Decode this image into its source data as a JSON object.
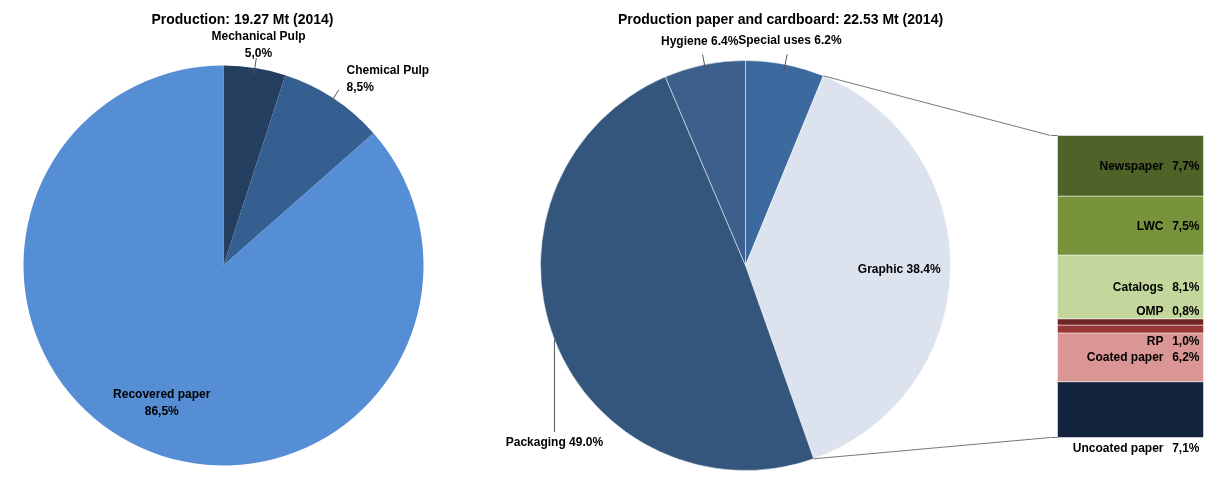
{
  "chart_data": [
    {
      "type": "pie",
      "title": "Production: 19.27 Mt (2014)",
      "categories": [
        "Mechanical Pulp",
        "Chemical Pulp",
        "Recovered paper"
      ],
      "values": [
        5.0,
        8.5,
        86.5
      ],
      "colors": [
        "#253f60",
        "#355f91",
        "#558ed5"
      ],
      "value_labels": [
        "5,0%",
        "8,5%",
        "86,5%"
      ]
    },
    {
      "type": "pie",
      "title": "Production paper and cardboard: 22.53 Mt (2014)",
      "categories": [
        "Special uses",
        "Graphic",
        "Packaging",
        "Hygiene"
      ],
      "values": [
        6.2,
        38.4,
        49.0,
        6.4
      ],
      "colors": [
        "#3d6a9e",
        "#dce3ef",
        "#34567d",
        "#3d5f8c"
      ],
      "value_labels": [
        "6.2%",
        "38.4%",
        "49.0%",
        "6.4%"
      ]
    },
    {
      "type": "bar",
      "stacked": true,
      "categories": [
        null
      ],
      "series": [
        {
          "name": "Uncoated paper",
          "color": "#14243f",
          "values": [
            7.1
          ],
          "value_labels": [
            "7,1%"
          ]
        },
        {
          "name": "Coated paper",
          "color": "#d99694",
          "values": [
            6.2
          ],
          "value_labels": [
            "6,2%"
          ]
        },
        {
          "name": "RP",
          "color": "#953735",
          "values": [
            1.0
          ],
          "value_labels": [
            "1,0%"
          ]
        },
        {
          "name": "OMP",
          "color": "#6e2424",
          "values": [
            0.8
          ],
          "value_labels": [
            "0,8%"
          ]
        },
        {
          "name": "Catalogs",
          "color": "#c3d69b",
          "values": [
            8.1
          ],
          "value_labels": [
            "8,1%"
          ]
        },
        {
          "name": "LWC",
          "color": "#77933c",
          "values": [
            7.5
          ],
          "value_labels": [
            "7,5%"
          ]
        },
        {
          "name": "Newspaper",
          "color": "#4f6228",
          "values": [
            7.7
          ],
          "value_labels": [
            "7,7%"
          ]
        }
      ]
    }
  ]
}
